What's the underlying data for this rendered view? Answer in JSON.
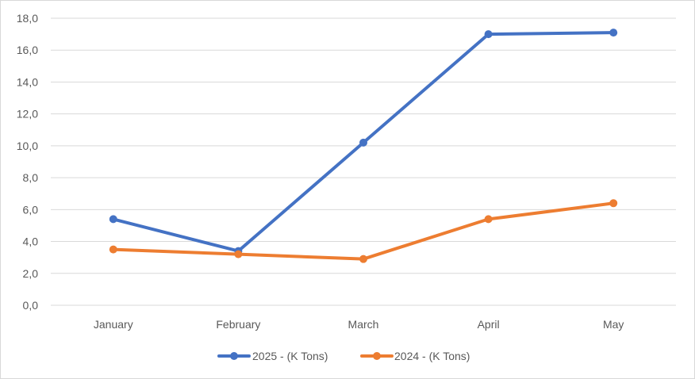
{
  "chart_data": {
    "type": "line",
    "categories": [
      "January",
      "February",
      "March",
      "April",
      "May"
    ],
    "series": [
      {
        "name": "2025 - (K Tons)",
        "values": [
          5.4,
          3.4,
          10.2,
          17.0,
          17.1
        ],
        "color": "#4472C4"
      },
      {
        "name": "2024 - (K Tons)",
        "values": [
          3.5,
          3.2,
          2.9,
          5.4,
          6.4
        ],
        "color": "#ED7D31"
      }
    ],
    "y_tick_labels": [
      "0,0",
      "2,0",
      "4,0",
      "6,0",
      "8,0",
      "10,0",
      "12,0",
      "14,0",
      "16,0",
      "18,0"
    ],
    "ylim": [
      0,
      18
    ],
    "grid": true,
    "legend_position": "bottom"
  }
}
